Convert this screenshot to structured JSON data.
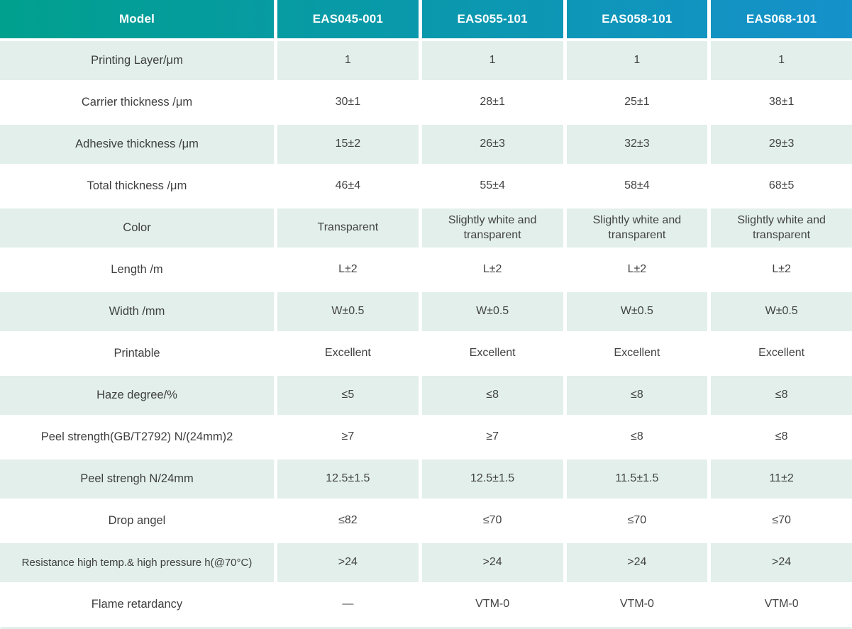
{
  "table": {
    "header": {
      "model_label": "Model",
      "columns": [
        "EAS045-001",
        "EAS055-101",
        "EAS058-101",
        "EAS068-101"
      ]
    },
    "rows": [
      {
        "label": "Printing Layer/μm",
        "values": [
          "1",
          "1",
          "1",
          "1"
        ]
      },
      {
        "label": "Carrier thickness /μm",
        "values": [
          "30±1",
          "28±1",
          "25±1",
          "38±1"
        ]
      },
      {
        "label": "Adhesive thickness /μm",
        "values": [
          "15±2",
          "26±3",
          "32±3",
          "29±3"
        ]
      },
      {
        "label": "Total thickness /μm",
        "values": [
          "46±4",
          "55±4",
          "58±4",
          "68±5"
        ]
      },
      {
        "label": "Color",
        "values": [
          "Transparent",
          "Slightly white and transparent",
          "Slightly white and transparent",
          "Slightly white and transparent"
        ]
      },
      {
        "label": "Length /m",
        "values": [
          "L±2",
          "L±2",
          "L±2",
          "L±2"
        ]
      },
      {
        "label": "Width /mm",
        "values": [
          "W±0.5",
          "W±0.5",
          "W±0.5",
          "W±0.5"
        ]
      },
      {
        "label": "Printable",
        "values": [
          "Excellent",
          "Excellent",
          "Excellent",
          "Excellent"
        ]
      },
      {
        "label": "Haze degree/%",
        "values": [
          "≤5",
          "≤8",
          "≤8",
          "≤8"
        ]
      },
      {
        "label": "Peel strength(GB/T2792)  N/(24mm)2",
        "values": [
          "≥7",
          "≥7",
          "≤8",
          "≤8"
        ]
      },
      {
        "label": "Peel strengh N/24mm",
        "values": [
          "12.5±1.5",
          "12.5±1.5",
          "11.5±1.5",
          "11±2"
        ]
      },
      {
        "label": "Drop angel",
        "values": [
          "≤82",
          "≤70",
          "≤70",
          "≤70"
        ]
      },
      {
        "label": "Resistance high temp.& high pressure h(@70°C)",
        "values": [
          ">24",
          ">24",
          ">24",
          ">24"
        ]
      },
      {
        "label": "Flame retardancy",
        "values": [
          "—",
          "VTM-0",
          "VTM-0",
          "VTM-0"
        ]
      }
    ],
    "colors": {
      "header_gradient_start": "#00a08e",
      "header_gradient_end": "#1591cb",
      "alt_row_bg": "#e2efeb",
      "text": "#434343",
      "header_text": "#ffffff"
    }
  }
}
